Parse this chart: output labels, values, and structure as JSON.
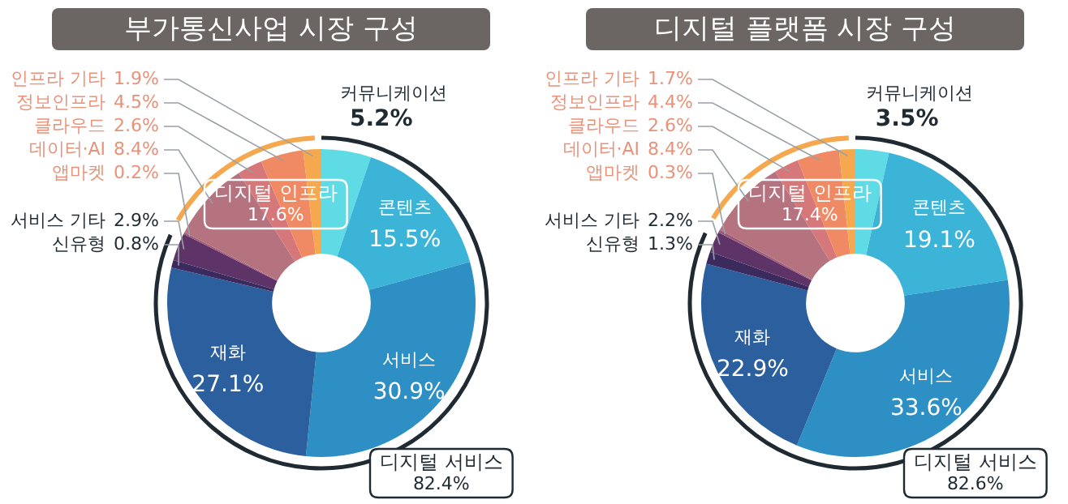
{
  "chart_data": [
    {
      "type": "donut",
      "title": "부가통신사업 시장 구성",
      "categories": [
        "커뮤니케이션",
        "콘텐츠",
        "서비스",
        "재화",
        "신유형",
        "서비스 기타",
        "앱마켓",
        "데이터·AI",
        "클라우드",
        "정보인프라",
        "인프라 기타"
      ],
      "values": [
        5.2,
        15.5,
        30.9,
        27.1,
        0.8,
        2.9,
        0.2,
        8.4,
        2.6,
        4.5,
        1.9
      ],
      "value_labels": [
        "5.2%",
        "15.5%",
        "30.9%",
        "27.1%",
        "0.8%",
        "2.9%",
        "0.2%",
        "8.4%",
        "2.6%",
        "4.5%",
        "1.9%"
      ],
      "colors": [
        "#5fdbe6",
        "#3cb4d8",
        "#2e8fc4",
        "#2b5f9e",
        "#3b2a5e",
        "#5e3468",
        "#9c5a7a",
        "#b5727f",
        "#d6787a",
        "#f08a64",
        "#f5a84e"
      ],
      "annotations": [
        "디지털 인프라\n17.6%",
        "디지털 서비스\n82.4%"
      ],
      "legend": false
    },
    {
      "type": "donut",
      "title": "디지털 플랫폼 시장 구성",
      "categories": [
        "커뮤니케이션",
        "콘텐츠",
        "서비스",
        "재화",
        "신유형",
        "서비스 기타",
        "앱마켓",
        "데이터·AI",
        "클라우드",
        "정보인프라",
        "인프라 기타"
      ],
      "values": [
        3.5,
        19.1,
        33.6,
        22.9,
        1.3,
        2.2,
        0.3,
        8.4,
        2.6,
        4.4,
        1.7
      ],
      "value_labels": [
        "3.5%",
        "19.1%",
        "33.6%",
        "22.9%",
        "1.3%",
        "2.2%",
        "0.3%",
        "8.4%",
        "2.6%",
        "4.4%",
        "1.7%"
      ],
      "colors": [
        "#5fdbe6",
        "#3cb4d8",
        "#2e8fc4",
        "#2b5f9e",
        "#3b2a5e",
        "#5e3468",
        "#9c5a7a",
        "#b5727f",
        "#d6787a",
        "#f08a64",
        "#f5a84e"
      ],
      "annotations": [
        "디지털 인프라\n17.4%",
        "디지털 서비스\n82.6%"
      ],
      "legend": false
    }
  ]
}
